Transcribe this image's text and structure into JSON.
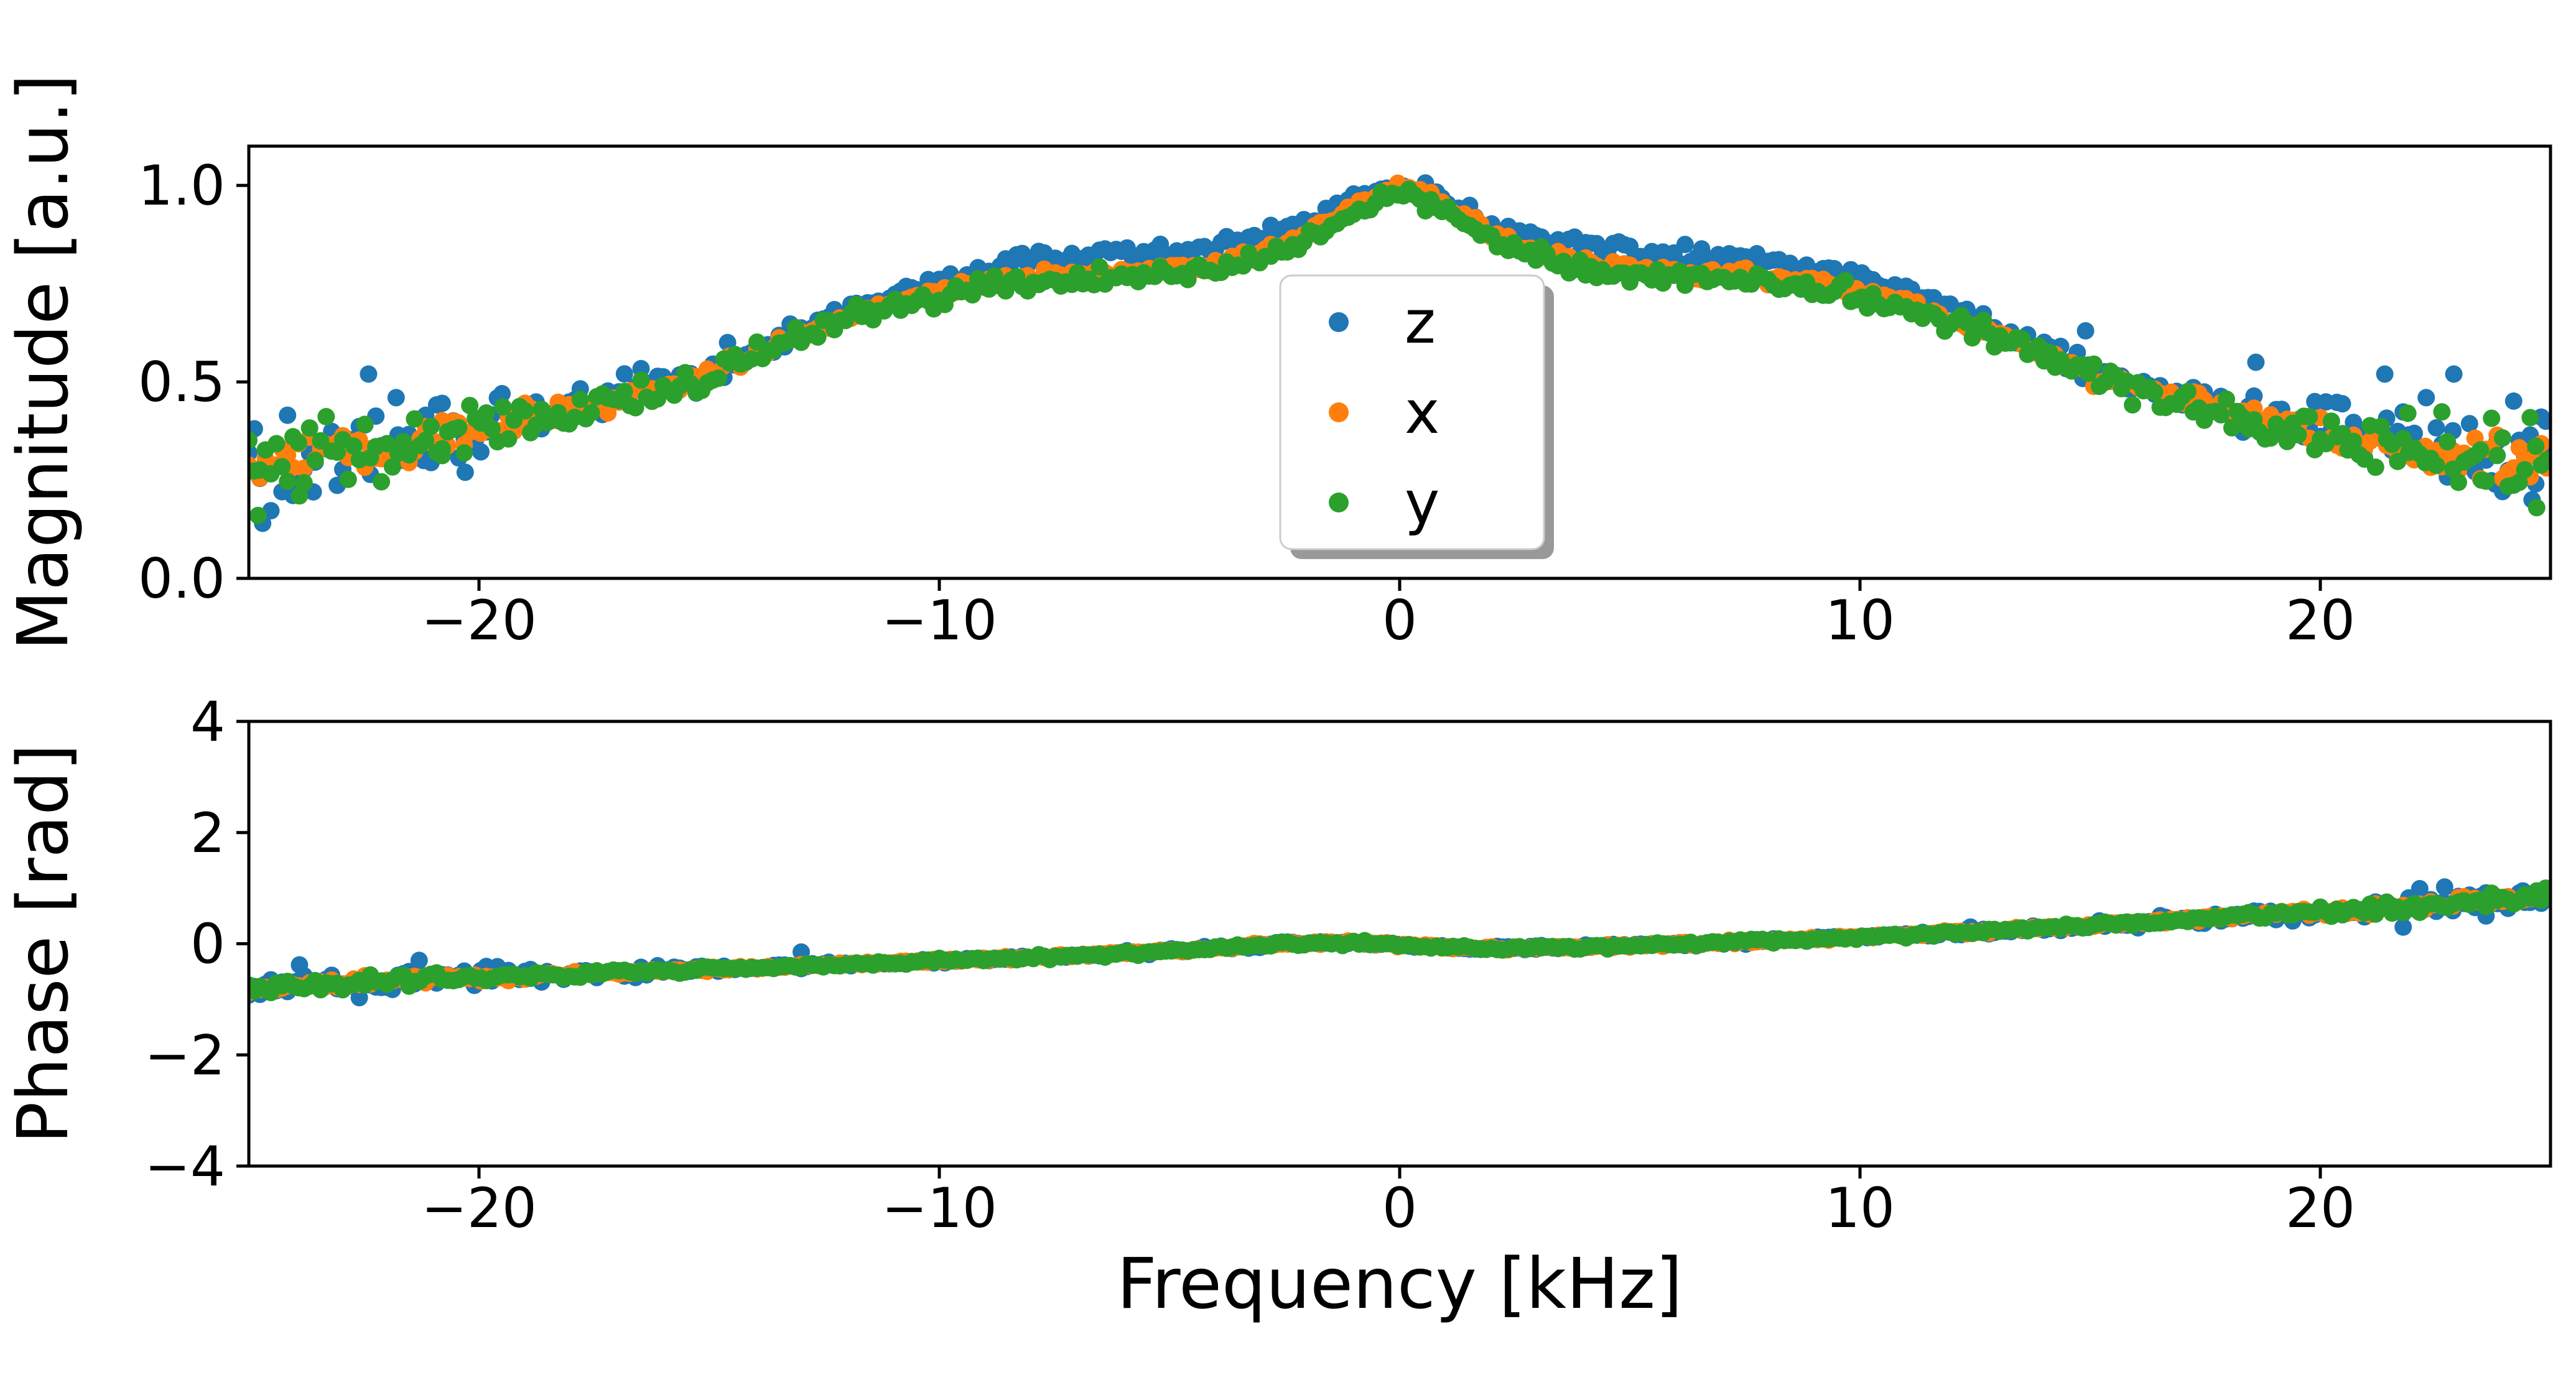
{
  "figure": {
    "background": "#ffffff",
    "description": "Two stacked scatter plots: magnitude and phase spectra versus frequency for three channels z, x, y"
  },
  "chart_data": [
    {
      "type": "scatter",
      "title": "",
      "xlabel": "",
      "ylabel": "Magnitude [a.u.]",
      "xlim": [
        -25,
        25
      ],
      "ylim": [
        0,
        1.1
      ],
      "xticks": [
        -20,
        -10,
        0,
        10,
        20
      ],
      "xtick_labels": [
        "−20",
        "−10",
        "0",
        "10",
        "20"
      ],
      "yticks": [
        0,
        0.5,
        1
      ],
      "ytick_labels": [
        "0.0",
        "0.5",
        "1.0"
      ],
      "grid": false,
      "legend": {
        "location": "center",
        "entries": [
          {
            "label": "z",
            "color": "#1f77b4"
          },
          {
            "label": "x",
            "color": "#ff7f0e"
          },
          {
            "label": "y",
            "color": "#2ca02c"
          }
        ]
      },
      "series": [
        {
          "name": "z",
          "color": "#1f77b4",
          "seed": 101,
          "step": 0.12,
          "noise_center": 0.012,
          "noise_edge": 0.065,
          "edge_start": 12,
          "profile_x": [
            -25,
            -24,
            -23,
            -22,
            -21,
            -20,
            -19,
            -18,
            -17,
            -16,
            -15,
            -14,
            -13,
            -12,
            -11,
            -10,
            -9,
            -8,
            -7,
            -6,
            -5,
            -4,
            -3,
            -2,
            -1,
            0,
            1,
            2,
            3,
            4,
            5,
            6,
            7,
            8,
            9,
            10,
            11,
            12,
            13,
            14,
            15,
            16,
            17,
            18,
            19,
            20,
            21,
            22,
            23,
            24,
            25
          ],
          "profile_y": [
            0.31,
            0.315,
            0.325,
            0.34,
            0.36,
            0.38,
            0.41,
            0.44,
            0.47,
            0.5,
            0.53,
            0.585,
            0.635,
            0.685,
            0.725,
            0.76,
            0.79,
            0.815,
            0.82,
            0.825,
            0.83,
            0.845,
            0.865,
            0.9,
            0.96,
            1.005,
            0.96,
            0.9,
            0.865,
            0.845,
            0.83,
            0.825,
            0.82,
            0.815,
            0.79,
            0.76,
            0.725,
            0.685,
            0.635,
            0.585,
            0.53,
            0.5,
            0.47,
            0.44,
            0.41,
            0.38,
            0.36,
            0.34,
            0.325,
            0.315,
            0.31
          ],
          "outliers": [
            [
              -24.7,
              0.14
            ],
            [
              -23.6,
              0.22
            ],
            [
              -22.4,
              0.52
            ],
            [
              -21.8,
              0.46
            ],
            [
              -21.2,
              0.3
            ],
            [
              -20.3,
              0.27
            ],
            [
              -19.5,
              0.47
            ],
            [
              -14.6,
              0.6
            ],
            [
              14.9,
              0.63
            ],
            [
              18.6,
              0.55
            ],
            [
              21.4,
              0.52
            ],
            [
              22.3,
              0.46
            ],
            [
              22.9,
              0.52
            ],
            [
              23.8,
              0.24
            ],
            [
              24.6,
              0.2
            ],
            [
              24.9,
              0.4
            ]
          ]
        },
        {
          "name": "x",
          "color": "#ff7f0e",
          "seed": 202,
          "step": 0.12,
          "noise_center": 0.008,
          "noise_edge": 0.035,
          "edge_start": 14,
          "profile_x": [
            -25,
            -24,
            -23,
            -22,
            -21,
            -20,
            -19,
            -18,
            -17,
            -16,
            -15,
            -14,
            -13,
            -12,
            -11,
            -10,
            -9,
            -8,
            -7,
            -6,
            -5,
            -4,
            -3,
            -2,
            -1,
            0,
            1,
            2,
            3,
            4,
            5,
            6,
            7,
            8,
            9,
            10,
            11,
            12,
            13,
            14,
            15,
            16,
            17,
            18,
            19,
            20,
            21,
            22,
            23,
            24,
            25
          ],
          "profile_y": [
            0.3,
            0.3,
            0.31,
            0.33,
            0.35,
            0.37,
            0.4,
            0.43,
            0.46,
            0.49,
            0.52,
            0.57,
            0.62,
            0.66,
            0.7,
            0.73,
            0.755,
            0.77,
            0.775,
            0.78,
            0.79,
            0.8,
            0.83,
            0.875,
            0.95,
            1.0,
            0.95,
            0.875,
            0.83,
            0.8,
            0.79,
            0.78,
            0.775,
            0.77,
            0.755,
            0.73,
            0.7,
            0.66,
            0.62,
            0.57,
            0.52,
            0.49,
            0.46,
            0.43,
            0.4,
            0.37,
            0.35,
            0.33,
            0.31,
            0.3,
            0.3
          ],
          "outliers": []
        },
        {
          "name": "y",
          "color": "#2ca02c",
          "seed": 303,
          "step": 0.12,
          "noise_center": 0.012,
          "noise_edge": 0.05,
          "edge_start": 13,
          "profile_x": [
            -25,
            -24,
            -23,
            -22,
            -21,
            -20,
            -19,
            -18,
            -17,
            -16,
            -15,
            -14,
            -13,
            -12,
            -11,
            -10,
            -9,
            -8,
            -7,
            -6,
            -5,
            -4,
            -3,
            -2,
            -1,
            0,
            1,
            2,
            3,
            4,
            5,
            6,
            7,
            8,
            9,
            10,
            11,
            12,
            13,
            14,
            15,
            16,
            17,
            18,
            19,
            20,
            21,
            22,
            23,
            24,
            25
          ],
          "profile_y": [
            0.3,
            0.3,
            0.31,
            0.325,
            0.345,
            0.365,
            0.395,
            0.425,
            0.455,
            0.485,
            0.515,
            0.565,
            0.615,
            0.655,
            0.69,
            0.715,
            0.74,
            0.755,
            0.76,
            0.765,
            0.775,
            0.785,
            0.815,
            0.86,
            0.93,
            0.985,
            0.93,
            0.86,
            0.815,
            0.785,
            0.775,
            0.765,
            0.76,
            0.755,
            0.74,
            0.715,
            0.69,
            0.655,
            0.615,
            0.565,
            0.515,
            0.485,
            0.455,
            0.425,
            0.395,
            0.365,
            0.345,
            0.325,
            0.31,
            0.3,
            0.3
          ],
          "outliers": [
            [
              -24.8,
              0.16
            ],
            [
              -23.9,
              0.21
            ],
            [
              -20.8,
              0.33
            ],
            [
              21.9,
              0.42
            ],
            [
              23.5,
              0.25
            ],
            [
              24.7,
              0.18
            ]
          ]
        }
      ]
    },
    {
      "type": "scatter",
      "title": "",
      "xlabel": "Frequency [kHz]",
      "ylabel": "Phase [rad]",
      "xlim": [
        -25,
        25
      ],
      "ylim": [
        -4,
        4
      ],
      "xticks": [
        -20,
        -10,
        0,
        10,
        20
      ],
      "xtick_labels": [
        "−20",
        "−10",
        "0",
        "10",
        "20"
      ],
      "yticks": [
        -4,
        -2,
        0,
        2,
        4
      ],
      "ytick_labels": [
        "−4",
        "−2",
        "0",
        "2",
        "4"
      ],
      "grid": false,
      "legend": null,
      "series": [
        {
          "name": "z",
          "color": "#1f77b4",
          "seed": 404,
          "step": 0.12,
          "noise_center": 0.02,
          "noise_edge": 0.13,
          "edge_start": 12,
          "profile_x": [
            -25,
            -24,
            -23,
            -22,
            -21,
            -20,
            -19,
            -18,
            -17,
            -16,
            -15,
            -14,
            -13,
            -12,
            -11,
            -10,
            -9,
            -8,
            -7,
            -6,
            -5,
            -4,
            -3,
            -2,
            -1,
            0,
            1,
            2,
            3,
            4,
            5,
            6,
            7,
            8,
            9,
            10,
            11,
            12,
            13,
            14,
            15,
            16,
            17,
            18,
            19,
            20,
            21,
            22,
            23,
            24,
            25
          ],
          "profile_y": [
            -0.82,
            -0.76,
            -0.71,
            -0.67,
            -0.64,
            -0.61,
            -0.58,
            -0.55,
            -0.52,
            -0.49,
            -0.46,
            -0.43,
            -0.4,
            -0.37,
            -0.34,
            -0.31,
            -0.28,
            -0.25,
            -0.21,
            -0.17,
            -0.13,
            -0.08,
            -0.03,
            0.01,
            0.02,
            -0.02,
            -0.06,
            -0.08,
            -0.08,
            -0.06,
            -0.04,
            -0.01,
            0.02,
            0.05,
            0.08,
            0.12,
            0.16,
            0.2,
            0.24,
            0.28,
            0.33,
            0.38,
            0.43,
            0.48,
            0.53,
            0.58,
            0.63,
            0.68,
            0.73,
            0.78,
            0.83
          ],
          "outliers": [
            [
              -23.9,
              -0.38
            ],
            [
              -22.6,
              -0.97
            ],
            [
              -21.3,
              -0.3
            ],
            [
              -20.1,
              -0.75
            ],
            [
              -13.0,
              -0.15
            ],
            [
              12.4,
              0.3
            ],
            [
              21.8,
              0.3
            ],
            [
              22.7,
              1.02
            ],
            [
              23.6,
              0.5
            ],
            [
              24.4,
              0.95
            ]
          ]
        },
        {
          "name": "x",
          "color": "#ff7f0e",
          "seed": 505,
          "step": 0.12,
          "noise_center": 0.015,
          "noise_edge": 0.07,
          "edge_start": 15,
          "profile_x": [
            -25,
            -24,
            -23,
            -22,
            -21,
            -20,
            -19,
            -18,
            -17,
            -16,
            -15,
            -14,
            -13,
            -12,
            -11,
            -10,
            -9,
            -8,
            -7,
            -6,
            -5,
            -4,
            -3,
            -2,
            -1,
            0,
            1,
            2,
            3,
            4,
            5,
            6,
            7,
            8,
            9,
            10,
            11,
            12,
            13,
            14,
            15,
            16,
            17,
            18,
            19,
            20,
            21,
            22,
            23,
            24,
            25
          ],
          "profile_y": [
            -0.82,
            -0.76,
            -0.71,
            -0.67,
            -0.64,
            -0.61,
            -0.58,
            -0.55,
            -0.52,
            -0.49,
            -0.46,
            -0.43,
            -0.4,
            -0.37,
            -0.34,
            -0.31,
            -0.28,
            -0.25,
            -0.21,
            -0.17,
            -0.13,
            -0.08,
            -0.03,
            0.01,
            0.02,
            -0.02,
            -0.06,
            -0.08,
            -0.08,
            -0.06,
            -0.04,
            -0.01,
            0.02,
            0.05,
            0.08,
            0.12,
            0.16,
            0.2,
            0.24,
            0.28,
            0.33,
            0.38,
            0.43,
            0.48,
            0.53,
            0.58,
            0.63,
            0.68,
            0.73,
            0.78,
            0.83
          ],
          "outliers": []
        },
        {
          "name": "y",
          "color": "#2ca02c",
          "seed": 606,
          "step": 0.12,
          "noise_center": 0.02,
          "noise_edge": 0.08,
          "edge_start": 15,
          "profile_x": [
            -25,
            -24,
            -23,
            -22,
            -21,
            -20,
            -19,
            -18,
            -17,
            -16,
            -15,
            -14,
            -13,
            -12,
            -11,
            -10,
            -9,
            -8,
            -7,
            -6,
            -5,
            -4,
            -3,
            -2,
            -1,
            0,
            1,
            2,
            3,
            4,
            5,
            6,
            7,
            8,
            9,
            10,
            11,
            12,
            13,
            14,
            15,
            16,
            17,
            18,
            19,
            20,
            21,
            22,
            23,
            24,
            25
          ],
          "profile_y": [
            -0.82,
            -0.76,
            -0.71,
            -0.67,
            -0.64,
            -0.61,
            -0.58,
            -0.55,
            -0.52,
            -0.49,
            -0.46,
            -0.43,
            -0.4,
            -0.37,
            -0.34,
            -0.31,
            -0.28,
            -0.25,
            -0.21,
            -0.17,
            -0.13,
            -0.08,
            -0.03,
            0.01,
            0.02,
            -0.02,
            -0.06,
            -0.08,
            -0.08,
            -0.06,
            -0.04,
            -0.01,
            0.02,
            0.05,
            0.08,
            0.12,
            0.16,
            0.2,
            0.24,
            0.28,
            0.33,
            0.38,
            0.43,
            0.48,
            0.53,
            0.58,
            0.63,
            0.68,
            0.73,
            0.78,
            0.83
          ],
          "outliers": [
            [
              24.7,
              0.95
            ],
            [
              24.9,
              1.0
            ]
          ]
        }
      ]
    }
  ]
}
